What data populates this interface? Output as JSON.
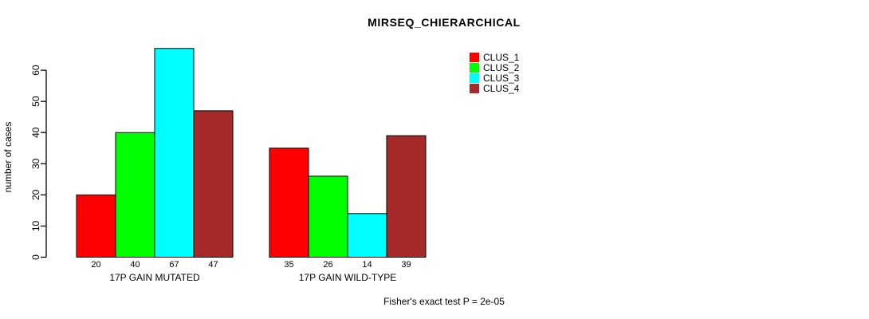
{
  "title": "MIRSEQ_CHIERARCHICAL",
  "chart_data": {
    "type": "bar",
    "title": "MIRSEQ_CHIERARCHICAL",
    "groups": [
      "17P GAIN MUTATED",
      "17P GAIN WILD-TYPE"
    ],
    "series": [
      {
        "name": "CLUS_1",
        "color": "#FF0000",
        "values": [
          20,
          35
        ]
      },
      {
        "name": "CLUS_2",
        "color": "#00FF00",
        "values": [
          40,
          26
        ]
      },
      {
        "name": "CLUS_3",
        "color": "#00FFFF",
        "values": [
          67,
          14
        ]
      },
      {
        "name": "CLUS_4",
        "color": "#A52A2A",
        "values": [
          47,
          39
        ]
      }
    ],
    "xlabel": "",
    "ylabel": "number of cases",
    "yticks": [
      0,
      10,
      20,
      30,
      40,
      50,
      60
    ],
    "ylim": [
      0,
      67
    ],
    "grid": false,
    "bar_value_labels": true,
    "legend_position": "top-right",
    "legend_boxed": false,
    "annotation": "Fisher's exact test P = 2e-05",
    "axis_color": "#000000",
    "bar_border_color": "#000000",
    "background_color": "#FFFFFF"
  }
}
